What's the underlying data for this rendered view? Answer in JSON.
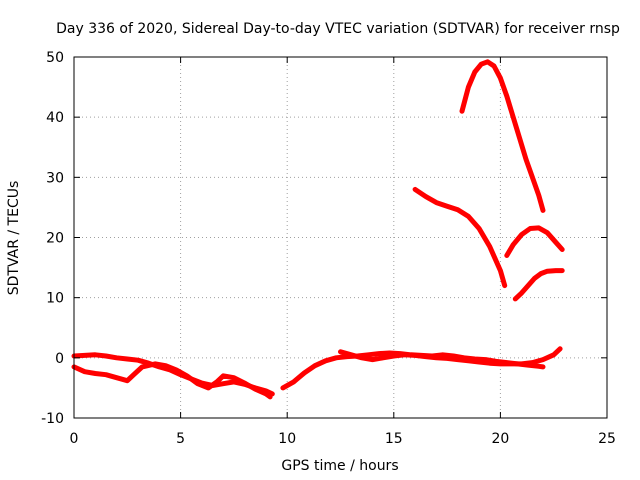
{
  "chart_data": {
    "type": "line",
    "title": "Day 336 of 2020, Sidereal Day-to-day VTEC variation (SDTVAR) for receiver rnsp",
    "xlabel": "GPS time / hours",
    "ylabel": "SDTVAR / TECUs",
    "xlim": [
      0,
      25
    ],
    "ylim": [
      -10,
      50
    ],
    "xticks": [
      0,
      5,
      10,
      15,
      20,
      25
    ],
    "yticks": [
      -10,
      0,
      10,
      20,
      30,
      40,
      50
    ],
    "xtick_labels": [
      "0",
      "5",
      "10",
      "15",
      "20",
      "25"
    ],
    "ytick_labels": [
      "-10",
      "0",
      "10",
      "20",
      "30",
      "40",
      "50"
    ],
    "grid": true,
    "legend": "none",
    "series_color": "#ff0000",
    "series": [
      {
        "points": [
          [
            0.0,
            0.3
          ],
          [
            0.5,
            0.4
          ],
          [
            1.0,
            0.5
          ],
          [
            1.5,
            0.3
          ],
          [
            2.0,
            0.0
          ],
          [
            2.5,
            -0.2
          ],
          [
            3.0,
            -0.4
          ],
          [
            3.5,
            -0.9
          ],
          [
            4.0,
            -1.5
          ],
          [
            4.5,
            -2.0
          ],
          [
            5.0,
            -2.8
          ],
          [
            5.5,
            -3.5
          ],
          [
            6.0,
            -4.2
          ],
          [
            6.5,
            -4.6
          ],
          [
            7.0,
            -4.3
          ],
          [
            7.5,
            -4.0
          ],
          [
            8.0,
            -4.4
          ],
          [
            8.5,
            -5.0
          ],
          [
            9.0,
            -5.5
          ],
          [
            9.3,
            -6.0
          ]
        ]
      },
      {
        "points": [
          [
            0.0,
            -1.5
          ],
          [
            0.5,
            -2.3
          ],
          [
            1.0,
            -2.6
          ],
          [
            1.5,
            -2.8
          ],
          [
            2.0,
            -3.3
          ],
          [
            2.5,
            -3.8
          ],
          [
            2.8,
            -2.8
          ],
          [
            3.2,
            -1.5
          ],
          [
            3.8,
            -1.0
          ],
          [
            4.3,
            -1.3
          ],
          [
            4.8,
            -2.0
          ],
          [
            5.3,
            -3.0
          ],
          [
            5.8,
            -4.3
          ],
          [
            6.3,
            -5.0
          ],
          [
            6.7,
            -4.0
          ],
          [
            7.0,
            -3.0
          ],
          [
            7.5,
            -3.3
          ],
          [
            8.0,
            -4.2
          ],
          [
            8.5,
            -5.2
          ],
          [
            9.0,
            -6.0
          ],
          [
            9.2,
            -6.5
          ]
        ]
      },
      {
        "points": [
          [
            9.8,
            -5.0
          ],
          [
            10.3,
            -4.0
          ],
          [
            10.8,
            -2.5
          ],
          [
            11.3,
            -1.3
          ],
          [
            11.8,
            -0.5
          ],
          [
            12.3,
            0.0
          ],
          [
            12.8,
            0.2
          ],
          [
            13.3,
            0.3
          ],
          [
            13.8,
            0.5
          ],
          [
            14.3,
            0.7
          ],
          [
            14.8,
            0.8
          ],
          [
            15.3,
            0.7
          ],
          [
            15.8,
            0.5
          ],
          [
            16.3,
            0.4
          ],
          [
            16.8,
            0.3
          ],
          [
            17.3,
            0.5
          ],
          [
            17.8,
            0.3
          ],
          [
            18.3,
            0.0
          ],
          [
            18.8,
            -0.2
          ],
          [
            19.3,
            -0.3
          ],
          [
            19.8,
            -0.6
          ],
          [
            20.3,
            -0.8
          ],
          [
            20.8,
            -1.0
          ],
          [
            21.3,
            -1.2
          ],
          [
            21.8,
            -1.4
          ],
          [
            22.0,
            -1.5
          ]
        ]
      },
      {
        "points": [
          [
            12.5,
            1.0
          ],
          [
            13.0,
            0.5
          ],
          [
            13.5,
            0.0
          ],
          [
            14.0,
            -0.3
          ],
          [
            14.5,
            0.0
          ],
          [
            15.0,
            0.3
          ],
          [
            15.5,
            0.5
          ],
          [
            16.0,
            0.4
          ],
          [
            16.5,
            0.2
          ],
          [
            17.0,
            0.0
          ],
          [
            17.5,
            -0.1
          ],
          [
            18.0,
            -0.3
          ],
          [
            18.5,
            -0.5
          ],
          [
            19.0,
            -0.7
          ],
          [
            19.5,
            -0.9
          ],
          [
            20.0,
            -1.0
          ],
          [
            20.5,
            -1.0
          ],
          [
            21.0,
            -1.0
          ],
          [
            21.5,
            -0.8
          ],
          [
            22.0,
            -0.3
          ],
          [
            22.5,
            0.5
          ],
          [
            22.8,
            1.5
          ]
        ]
      },
      {
        "points": [
          [
            16.0,
            28.0
          ],
          [
            16.5,
            26.8
          ],
          [
            17.0,
            25.8
          ],
          [
            17.5,
            25.2
          ],
          [
            18.0,
            24.6
          ],
          [
            18.5,
            23.5
          ],
          [
            19.0,
            21.5
          ],
          [
            19.5,
            18.5
          ],
          [
            20.0,
            14.5
          ],
          [
            20.2,
            12.0
          ]
        ]
      },
      {
        "points": [
          [
            18.2,
            41.0
          ],
          [
            18.5,
            45.0
          ],
          [
            18.8,
            47.5
          ],
          [
            19.1,
            48.8
          ],
          [
            19.4,
            49.2
          ],
          [
            19.7,
            48.5
          ],
          [
            20.0,
            46.5
          ],
          [
            20.3,
            43.5
          ],
          [
            20.6,
            40.0
          ],
          [
            20.9,
            36.5
          ],
          [
            21.2,
            33.0
          ],
          [
            21.5,
            30.0
          ],
          [
            21.8,
            27.0
          ],
          [
            22.0,
            24.5
          ]
        ]
      },
      {
        "points": [
          [
            20.3,
            17.0
          ],
          [
            20.6,
            18.8
          ],
          [
            21.0,
            20.5
          ],
          [
            21.4,
            21.5
          ],
          [
            21.8,
            21.6
          ],
          [
            22.2,
            20.8
          ],
          [
            22.6,
            19.2
          ],
          [
            22.9,
            18.0
          ]
        ]
      },
      {
        "points": [
          [
            20.7,
            9.8
          ],
          [
            21.0,
            10.8
          ],
          [
            21.3,
            12.0
          ],
          [
            21.6,
            13.2
          ],
          [
            21.9,
            14.0
          ],
          [
            22.2,
            14.4
          ],
          [
            22.6,
            14.5
          ],
          [
            22.9,
            14.5
          ]
        ]
      }
    ]
  }
}
